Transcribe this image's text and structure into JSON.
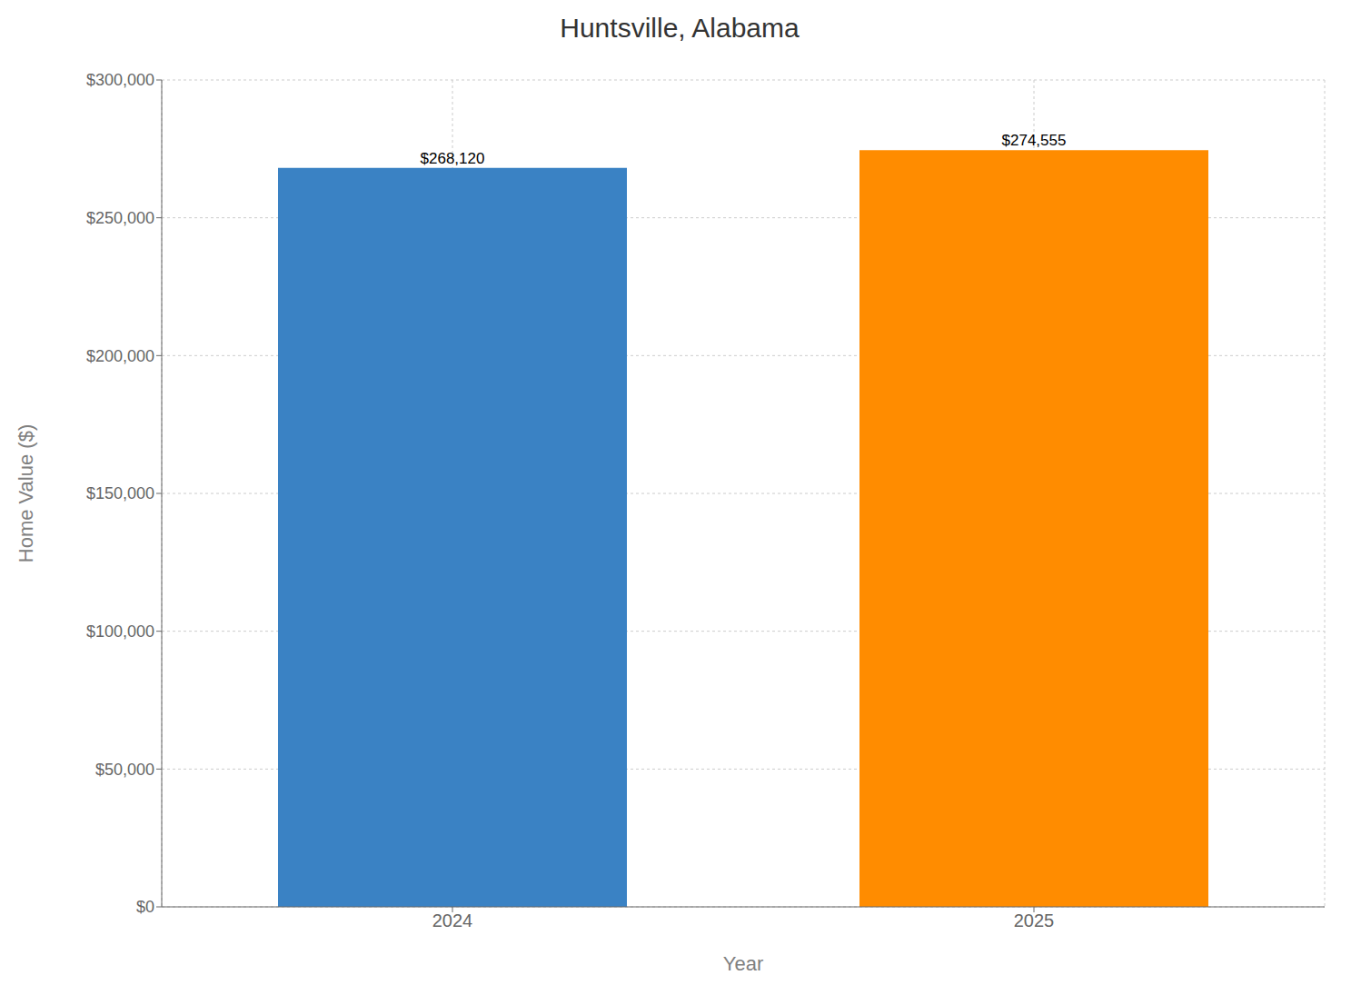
{
  "chart_data": {
    "type": "bar",
    "title": "Huntsville, Alabama",
    "xlabel": "Year",
    "ylabel": "Home Value ($)",
    "categories": [
      "2024",
      "2025"
    ],
    "values": [
      268120,
      274555
    ],
    "value_labels": [
      "$268,120",
      "$274,555"
    ],
    "colors": [
      "#3a82c4",
      "#ff8c00"
    ],
    "data_labels": true,
    "ylim": [
      0,
      300000
    ],
    "yticks": [
      {
        "value": 0,
        "label": "$0"
      },
      {
        "value": 50000,
        "label": "$50,000"
      },
      {
        "value": 100000,
        "label": "$100,000"
      },
      {
        "value": 150000,
        "label": "$150,000"
      },
      {
        "value": 200000,
        "label": "$200,000"
      },
      {
        "value": 250000,
        "label": "$250,000"
      },
      {
        "value": 300000,
        "label": "$300,000"
      }
    ],
    "grid": true
  }
}
